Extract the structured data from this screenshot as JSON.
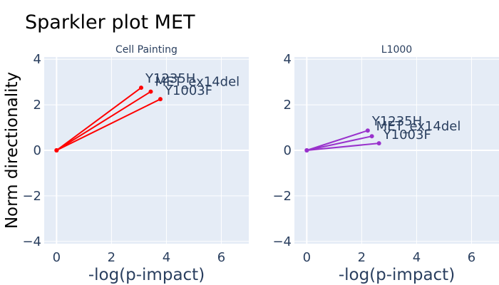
{
  "title": "Sparkler plot MET",
  "ylabel": "Norm directionality",
  "colors": {
    "background": "#ffffff",
    "plot_bg": "#e5ecf6",
    "grid": "#ffffff",
    "text": "#2a3f5f"
  },
  "chart_data": [
    {
      "type": "line",
      "subtitle": "Cell Painting",
      "xlabel": "-log(p-impact)",
      "xlim": [
        -0.45,
        7.0
      ],
      "ylim": [
        -4.1,
        4.1
      ],
      "xticks": [
        0,
        2,
        4,
        6
      ],
      "yticks": [
        -4,
        -2,
        0,
        2,
        4
      ],
      "grid": true,
      "color": "#ff0000",
      "series": [
        {
          "name": "Y1235H",
          "x": [
            0,
            3.08
          ],
          "y": [
            0,
            2.75
          ]
        },
        {
          "name": "MET_ex14del",
          "x": [
            0,
            3.43
          ],
          "y": [
            0,
            2.58
          ]
        },
        {
          "name": "Y1003F",
          "x": [
            0,
            3.78
          ],
          "y": [
            0,
            2.25
          ]
        }
      ]
    },
    {
      "type": "line",
      "subtitle": "L1000",
      "xlabel": "-log(p-impact)",
      "xlim": [
        -0.45,
        7.0
      ],
      "ylim": [
        -4.1,
        4.1
      ],
      "xticks": [
        0,
        2,
        4,
        6
      ],
      "yticks": [
        -4,
        -2,
        0,
        2,
        4
      ],
      "grid": true,
      "color": "#9932cc",
      "series": [
        {
          "name": "Y1235H",
          "x": [
            0,
            2.22
          ],
          "y": [
            0,
            0.87
          ]
        },
        {
          "name": "MET_ex14del",
          "x": [
            0,
            2.37
          ],
          "y": [
            0,
            0.62
          ]
        },
        {
          "name": "Y1003F",
          "x": [
            0,
            2.63
          ],
          "y": [
            0,
            0.31
          ]
        }
      ]
    }
  ]
}
